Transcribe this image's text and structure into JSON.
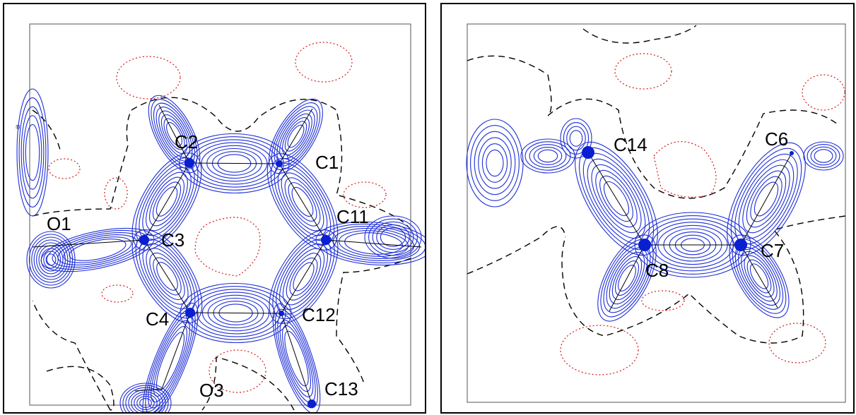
{
  "panels": [
    {
      "id": "left",
      "corner_mark": "3)",
      "atom_labels": [
        "C2",
        "C1",
        "O1",
        "C3",
        "C11",
        "C4",
        "C12",
        "O3",
        "C13"
      ]
    },
    {
      "id": "right",
      "atom_labels": [
        "C14",
        "C6",
        "C8",
        "C7"
      ]
    }
  ],
  "colors": {
    "positive_contour": "#1f2fd6",
    "zero_contour": "#000000",
    "negative_contour": "#d11a1a",
    "atom_dot": "#0a1fcf"
  }
}
